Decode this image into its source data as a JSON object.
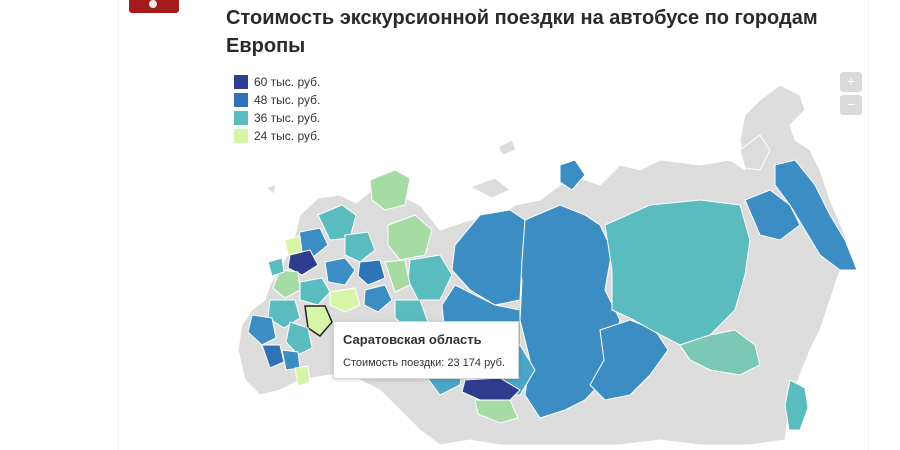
{
  "header": {
    "title": "Стоимость экскурсионной поездки на автобусе по городам Европы"
  },
  "legend": {
    "items": [
      {
        "label": "60 тыс. руб.",
        "color": "#2f3d8f"
      },
      {
        "label": "48 тыс. руб.",
        "color": "#2e73b5"
      },
      {
        "label": "36 тыс. руб.",
        "color": "#5bbcc0"
      },
      {
        "label": "24 тыс. руб.",
        "color": "#d7f5a6"
      }
    ]
  },
  "zoom": {
    "plus_label": "+",
    "minus_label": "−"
  },
  "tooltip": {
    "region": "Саратовская область",
    "value_text": "Стоимость поездки: 23 174 руб."
  },
  "colors": {
    "no_data": "#dcdcdc",
    "region_border": "#ffffff",
    "highlight_border": "#222222",
    "brand": "#a31b1b"
  }
}
